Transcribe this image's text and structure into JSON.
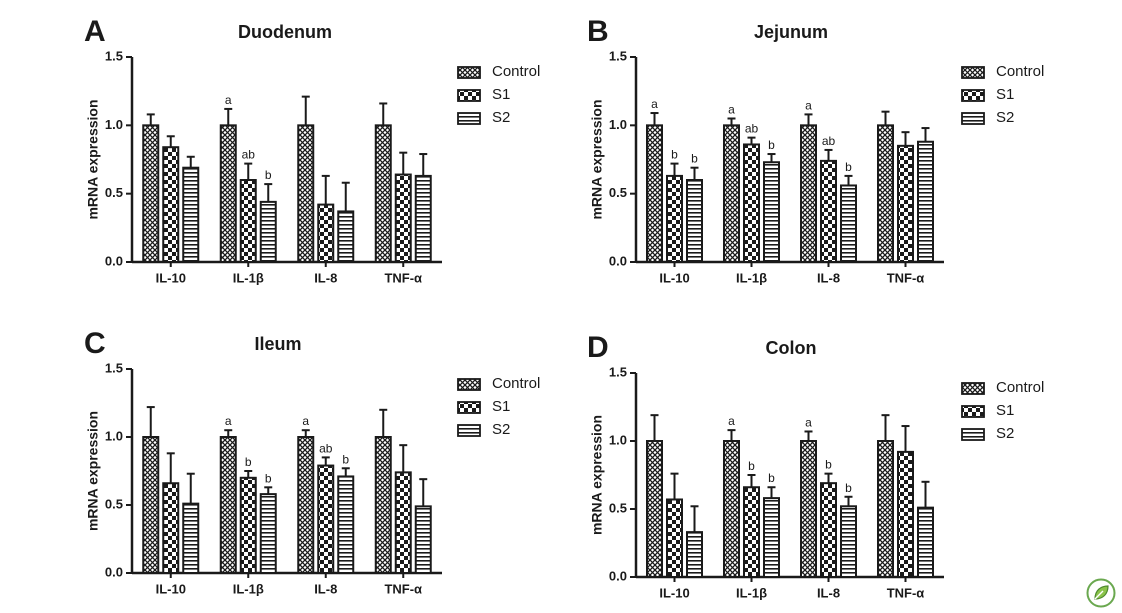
{
  "figure": {
    "corner_icon": "leaf-logo-icon",
    "colors": {
      "ink": "#1a1a1a",
      "fill": "#ffffff"
    },
    "legend": [
      "Control",
      "S1",
      "S2"
    ],
    "ylabel": "mRNA expression"
  },
  "chart_data": [
    {
      "type": "bar",
      "panel_letter": "A",
      "title": "Duodenum",
      "categories": [
        "IL-10",
        "IL-1β",
        "IL-8",
        "TNF-α"
      ],
      "ylabel": "mRNA expression",
      "ylim": [
        0,
        1.5
      ],
      "yticks": [
        "0.0",
        "0.5",
        "1.0",
        "1.5"
      ],
      "grid": false,
      "legend_position": "right",
      "series": [
        {
          "name": "Control",
          "values": [
            1.0,
            1.0,
            1.0,
            1.0
          ],
          "errors": [
            0.08,
            0.12,
            0.21,
            0.16
          ],
          "sig": [
            "",
            "a",
            "",
            ""
          ]
        },
        {
          "name": "S1",
          "values": [
            0.84,
            0.6,
            0.42,
            0.64
          ],
          "errors": [
            0.08,
            0.12,
            0.21,
            0.16
          ],
          "sig": [
            "",
            "ab",
            "",
            ""
          ]
        },
        {
          "name": "S2",
          "values": [
            0.69,
            0.44,
            0.37,
            0.63
          ],
          "errors": [
            0.08,
            0.13,
            0.21,
            0.16
          ],
          "sig": [
            "",
            "b",
            "",
            ""
          ]
        }
      ]
    },
    {
      "type": "bar",
      "panel_letter": "B",
      "title": "Jejunum",
      "categories": [
        "IL-10",
        "IL-1β",
        "IL-8",
        "TNF-α"
      ],
      "ylabel": "mRNA expression",
      "ylim": [
        0,
        1.5
      ],
      "yticks": [
        "0.0",
        "0.5",
        "1.0",
        "1.5"
      ],
      "grid": false,
      "legend_position": "right",
      "series": [
        {
          "name": "Control",
          "values": [
            1.0,
            1.0,
            1.0,
            1.0
          ],
          "errors": [
            0.09,
            0.05,
            0.08,
            0.1
          ],
          "sig": [
            "a",
            "a",
            "a",
            ""
          ]
        },
        {
          "name": "S1",
          "values": [
            0.63,
            0.86,
            0.74,
            0.85
          ],
          "errors": [
            0.09,
            0.05,
            0.08,
            0.1
          ],
          "sig": [
            "b",
            "ab",
            "ab",
            ""
          ]
        },
        {
          "name": "S2",
          "values": [
            0.6,
            0.73,
            0.56,
            0.88
          ],
          "errors": [
            0.09,
            0.06,
            0.07,
            0.1
          ],
          "sig": [
            "b",
            "b",
            "b",
            ""
          ]
        }
      ]
    },
    {
      "type": "bar",
      "panel_letter": "C",
      "title": "Ileum",
      "categories": [
        "IL-10",
        "IL-1β",
        "IL-8",
        "TNF-α"
      ],
      "ylabel": "mRNA expression",
      "ylim": [
        0,
        1.5
      ],
      "yticks": [
        "0.0",
        "0.5",
        "1.0",
        "1.5"
      ],
      "grid": false,
      "legend_position": "right",
      "series": [
        {
          "name": "Control",
          "values": [
            1.0,
            1.0,
            1.0,
            1.0
          ],
          "errors": [
            0.22,
            0.05,
            0.05,
            0.2
          ],
          "sig": [
            "",
            "a",
            "a",
            ""
          ]
        },
        {
          "name": "S1",
          "values": [
            0.66,
            0.7,
            0.79,
            0.74
          ],
          "errors": [
            0.22,
            0.05,
            0.06,
            0.2
          ],
          "sig": [
            "",
            "b",
            "ab",
            ""
          ]
        },
        {
          "name": "S2",
          "values": [
            0.51,
            0.58,
            0.71,
            0.49
          ],
          "errors": [
            0.22,
            0.05,
            0.06,
            0.2
          ],
          "sig": [
            "",
            "b",
            "b",
            ""
          ]
        }
      ]
    },
    {
      "type": "bar",
      "panel_letter": "D",
      "title": "Colon",
      "categories": [
        "IL-10",
        "IL-1β",
        "IL-8",
        "TNF-α"
      ],
      "ylabel": "mRNA expression",
      "ylim": [
        0,
        1.5
      ],
      "yticks": [
        "0.0",
        "0.5",
        "1.0",
        "1.5"
      ],
      "grid": false,
      "legend_position": "right",
      "series": [
        {
          "name": "Control",
          "values": [
            1.0,
            1.0,
            1.0,
            1.0
          ],
          "errors": [
            0.19,
            0.08,
            0.07,
            0.19
          ],
          "sig": [
            "",
            "a",
            "a",
            ""
          ]
        },
        {
          "name": "S1",
          "values": [
            0.57,
            0.66,
            0.69,
            0.92
          ],
          "errors": [
            0.19,
            0.09,
            0.07,
            0.19
          ],
          "sig": [
            "",
            "b",
            "b",
            ""
          ]
        },
        {
          "name": "S2",
          "values": [
            0.33,
            0.58,
            0.52,
            0.51
          ],
          "errors": [
            0.19,
            0.08,
            0.07,
            0.19
          ],
          "sig": [
            "",
            "b",
            "b",
            ""
          ]
        }
      ]
    }
  ]
}
